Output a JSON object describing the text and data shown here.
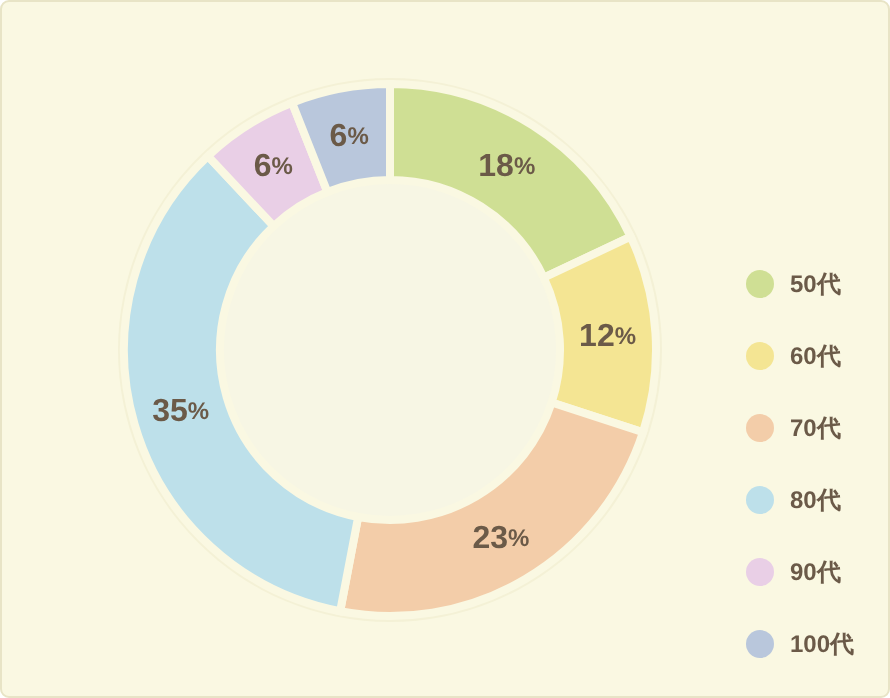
{
  "chart_data": {
    "type": "donut",
    "categories": [
      "50代",
      "60代",
      "70代",
      "80代",
      "90代",
      "100代"
    ],
    "values": [
      18,
      12,
      23,
      35,
      6,
      6
    ],
    "colors": [
      "#cfdf94",
      "#f4e593",
      "#f3cda9",
      "#bde0ea",
      "#e9cfe6",
      "#b9c7dc"
    ],
    "value_labels": [
      "18%",
      "12%",
      "23%",
      "35%",
      "6%",
      "6%"
    ],
    "legend": "right"
  }
}
